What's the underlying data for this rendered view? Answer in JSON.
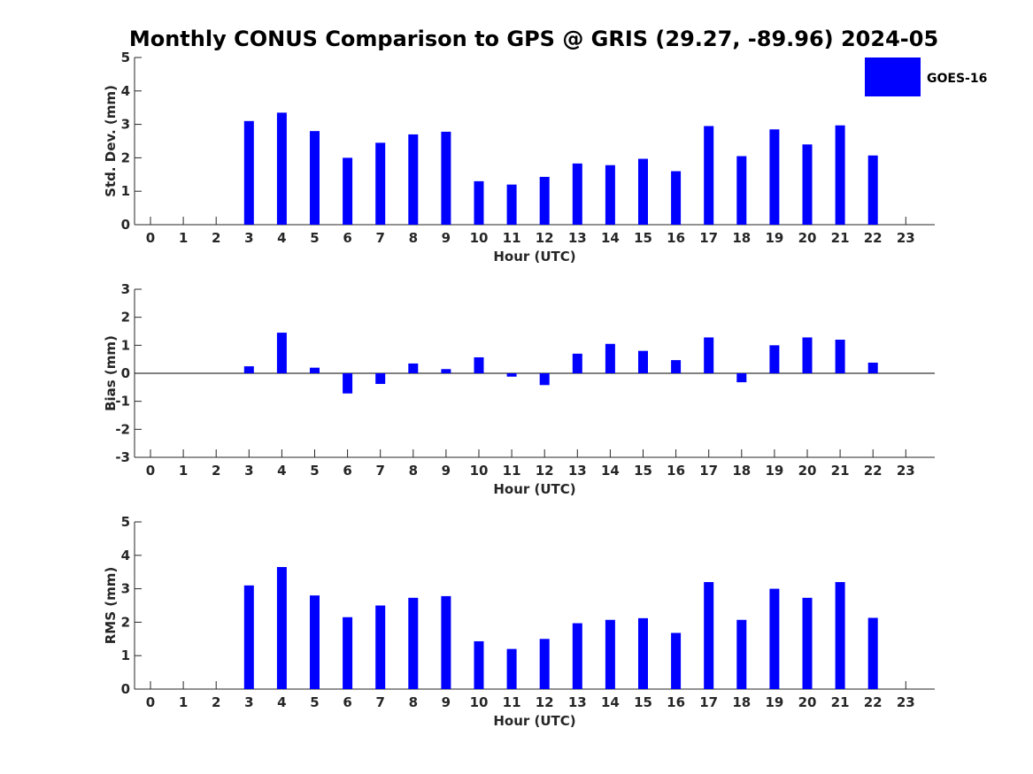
{
  "title": "Monthly CONUS Comparison to GPS @ GRIS (29.27, -89.96) 2024-05",
  "colors": {
    "bar": "#0000ff",
    "axis": "#262626"
  },
  "legend": {
    "label": "GOES-16",
    "placement": "top-right"
  },
  "chart_data": [
    {
      "type": "bar",
      "name": "std_dev",
      "xlabel": "Hour (UTC)",
      "ylabel": "Std. Dev. (mm)",
      "ylim": [
        0,
        5
      ],
      "yticks": [
        0,
        1,
        2,
        3,
        4,
        5
      ],
      "categories": [
        0,
        1,
        2,
        3,
        4,
        5,
        6,
        7,
        8,
        9,
        10,
        11,
        12,
        13,
        14,
        15,
        16,
        17,
        18,
        19,
        20,
        21,
        22,
        23
      ],
      "series": [
        {
          "name": "GOES-16",
          "values": [
            null,
            null,
            null,
            3.1,
            3.35,
            2.8,
            2.0,
            2.45,
            2.7,
            2.78,
            1.3,
            1.2,
            1.43,
            1.83,
            1.78,
            1.97,
            1.6,
            2.95,
            2.05,
            2.85,
            2.4,
            2.97,
            2.07,
            null
          ]
        }
      ],
      "grid": false
    },
    {
      "type": "bar",
      "name": "bias",
      "xlabel": "Hour (UTC)",
      "ylabel": "Bias (mm)",
      "ylim": [
        -3,
        3
      ],
      "yticks": [
        -3,
        -2,
        -1,
        0,
        1,
        2,
        3
      ],
      "categories": [
        0,
        1,
        2,
        3,
        4,
        5,
        6,
        7,
        8,
        9,
        10,
        11,
        12,
        13,
        14,
        15,
        16,
        17,
        18,
        19,
        20,
        21,
        22,
        23
      ],
      "series": [
        {
          "name": "GOES-16",
          "values": [
            null,
            null,
            null,
            0.25,
            1.45,
            0.2,
            -0.72,
            -0.38,
            0.35,
            0.15,
            0.57,
            -0.12,
            -0.42,
            0.7,
            1.05,
            0.8,
            0.47,
            1.28,
            -0.32,
            1.0,
            1.28,
            1.2,
            0.38,
            null
          ]
        }
      ],
      "grid": false
    },
    {
      "type": "bar",
      "name": "rms",
      "xlabel": "Hour (UTC)",
      "ylabel": "RMS (mm)",
      "ylim": [
        0,
        5
      ],
      "yticks": [
        0,
        1,
        2,
        3,
        4,
        5
      ],
      "categories": [
        0,
        1,
        2,
        3,
        4,
        5,
        6,
        7,
        8,
        9,
        10,
        11,
        12,
        13,
        14,
        15,
        16,
        17,
        18,
        19,
        20,
        21,
        22,
        23
      ],
      "series": [
        {
          "name": "GOES-16",
          "values": [
            null,
            null,
            null,
            3.1,
            3.65,
            2.8,
            2.15,
            2.5,
            2.73,
            2.78,
            1.43,
            1.2,
            1.5,
            1.97,
            2.07,
            2.12,
            1.68,
            3.2,
            2.07,
            3.0,
            2.73,
            3.2,
            2.13,
            null
          ]
        }
      ],
      "grid": false
    }
  ]
}
